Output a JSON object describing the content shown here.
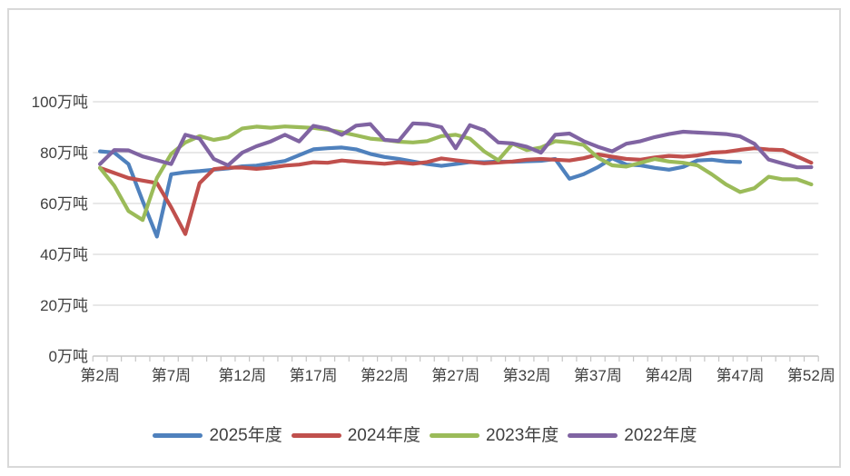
{
  "chart_data": {
    "type": "line",
    "title": "",
    "unit": "万吨",
    "grid": true,
    "legend_position": "bottom",
    "ylim": [
      0,
      100
    ],
    "y_ticks": [
      {
        "value": 0,
        "label": "0万吨"
      },
      {
        "value": 20,
        "label": "20万吨"
      },
      {
        "value": 40,
        "label": "40万吨"
      },
      {
        "value": 60,
        "label": "60万吨"
      },
      {
        "value": 80,
        "label": "80万吨"
      },
      {
        "value": 100,
        "label": "100万吨"
      }
    ],
    "x_ticks": [
      {
        "week": 2,
        "label": "第2周"
      },
      {
        "week": 7,
        "label": "第7周"
      },
      {
        "week": 12,
        "label": "第12周"
      },
      {
        "week": 17,
        "label": "第17周"
      },
      {
        "week": 22,
        "label": "第22周"
      },
      {
        "week": 27,
        "label": "第27周"
      },
      {
        "week": 32,
        "label": "第32周"
      },
      {
        "week": 37,
        "label": "第37周"
      },
      {
        "week": 42,
        "label": "第42周"
      },
      {
        "week": 47,
        "label": "第47周"
      },
      {
        "week": 52,
        "label": "第52周"
      }
    ],
    "weeks": [
      2,
      3,
      4,
      5,
      6,
      7,
      8,
      9,
      10,
      11,
      12,
      13,
      14,
      15,
      16,
      17,
      18,
      19,
      20,
      21,
      22,
      23,
      24,
      25,
      26,
      27,
      28,
      29,
      30,
      31,
      32,
      33,
      34,
      35,
      36,
      37,
      38,
      39,
      40,
      41,
      42,
      43,
      44,
      45,
      46,
      47,
      48,
      49,
      50,
      51,
      52
    ],
    "series": [
      {
        "name": "2025年度",
        "color": "#4F81BD",
        "values": [
          80.5,
          80,
          75.5,
          61,
          47,
          71.5,
          72.3,
          72.7,
          73.3,
          73.8,
          74.6,
          74.9,
          75.8,
          76.7,
          79,
          81.3,
          81.7,
          82,
          81.3,
          79.5,
          78.3,
          77.5,
          76.5,
          75.5,
          74.8,
          75.5,
          76.3,
          76.2,
          76.5,
          76.4,
          76.6,
          76.8,
          77.5,
          69.7,
          71.5,
          74.3,
          77.8,
          75.3,
          75,
          74,
          73.3,
          74.4,
          76.9,
          77.2,
          76.5,
          76.3,
          null,
          null,
          null,
          null,
          null
        ]
      },
      {
        "name": "2024年度",
        "color": "#C0504D",
        "values": [
          74,
          72,
          70,
          69,
          68,
          58.5,
          48,
          68,
          73.5,
          74.1,
          74.1,
          73.6,
          74.1,
          74.9,
          75.3,
          76.2,
          76,
          76.9,
          76.4,
          76,
          75.6,
          76.2,
          75.6,
          76.3,
          77.7,
          77,
          76.4,
          75.8,
          76.1,
          76.5,
          77.2,
          77.5,
          77.2,
          76.9,
          77.8,
          79.3,
          78.4,
          77.5,
          77.2,
          78.1,
          78.7,
          78.4,
          78.9,
          80,
          80.3,
          81.1,
          81.7,
          81.2,
          81,
          78.5,
          76
        ]
      },
      {
        "name": "2023年度",
        "color": "#9BBB59",
        "values": [
          74,
          67,
          57,
          53.5,
          70,
          79.5,
          84,
          86.5,
          85,
          86,
          89.5,
          90.2,
          89.8,
          90.3,
          90,
          89.7,
          89,
          88,
          86.8,
          85.5,
          85,
          84.3,
          84,
          84.5,
          86.5,
          87,
          85.5,
          80.5,
          77,
          83.5,
          81,
          82,
          84.5,
          84,
          83,
          78,
          75,
          74.5,
          76,
          77.5,
          76.5,
          76,
          75,
          71.5,
          67.5,
          64.5,
          66,
          70.5,
          69.5,
          69.5,
          67.5
        ]
      },
      {
        "name": "2022年度",
        "color": "#8064A2",
        "values": [
          75.5,
          81,
          80.9,
          78.5,
          77,
          75.5,
          87,
          85.5,
          77.5,
          75,
          80,
          82.5,
          84.4,
          87,
          84.4,
          90.5,
          89.4,
          87,
          90.6,
          91.2,
          85,
          84.6,
          91.5,
          91.2,
          90,
          81.7,
          90.8,
          88.8,
          84,
          83.6,
          82.3,
          80,
          87,
          87.5,
          84.5,
          82.3,
          80.5,
          83.5,
          84.5,
          86.1,
          87.3,
          88.2,
          87.9,
          87.6,
          87.3,
          86.4,
          83.5,
          77.3,
          75.7,
          74.2,
          74.3
        ]
      }
    ],
    "style": {
      "gridline_color": "#d9d9d9",
      "axis_line_color": "#c6c6c6",
      "tick_color": "#c6c6c6",
      "label_color": "#404040",
      "background": "#ffffff",
      "border_color": "#d9d9d9"
    }
  }
}
